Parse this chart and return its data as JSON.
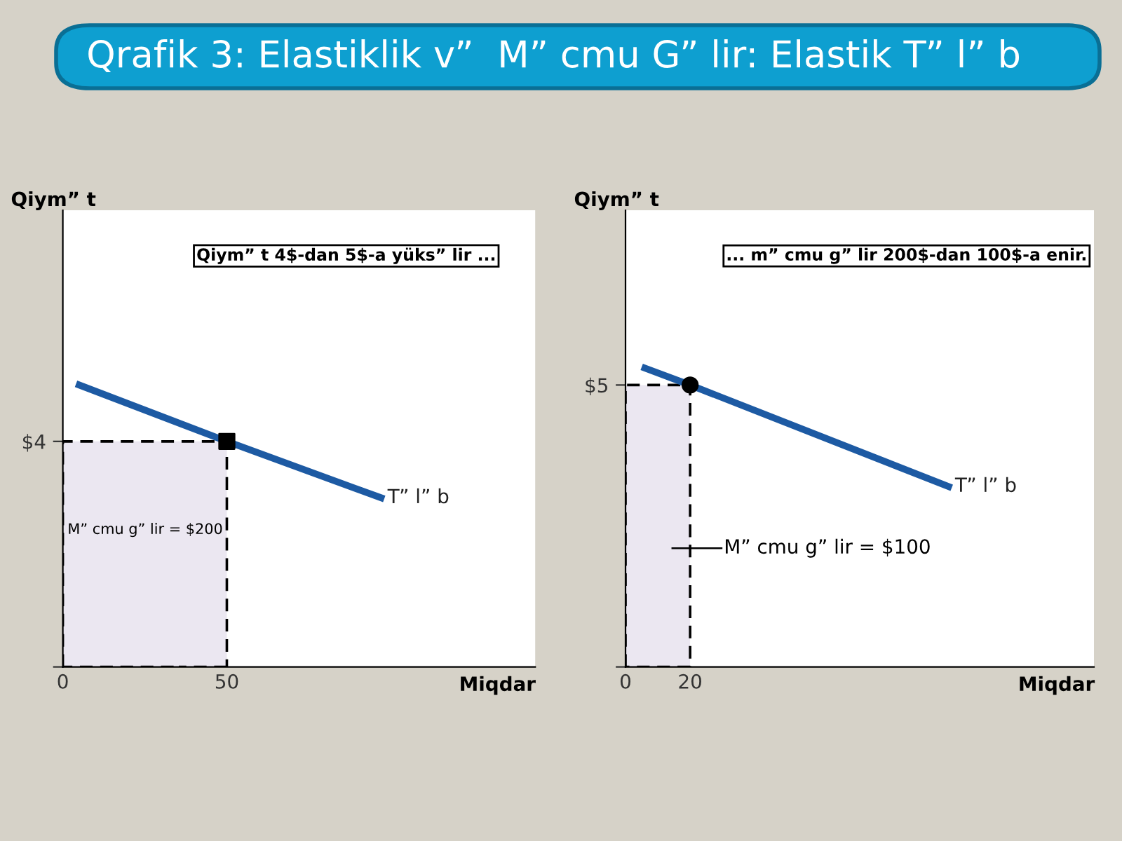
{
  "chart_data": [
    {
      "type": "line",
      "title": "Qrafik 3: Elastiklik v”  M” cmu G” lir: Elastik T” l” b",
      "xlabel": "Miqdar",
      "ylabel": "Qiym” t",
      "annotations": [
        "Qiym” t 4$-dan 5$-a yüks” lir ...",
        "M” cmu g” lir = $200"
      ],
      "xlim": [
        0,
        144
      ],
      "ylim": [
        0,
        8.1
      ],
      "xticks": [
        0,
        50
      ],
      "yticks": [
        {
          "value": 0,
          "label": null
        },
        {
          "value": 4,
          "label": "$4"
        }
      ],
      "grid": false,
      "series": [
        {
          "type": "area",
          "color": "#ebe7f1",
          "line_style": "dashed",
          "x": [
            0,
            50
          ],
          "values": [
            4,
            4
          ]
        },
        {
          "name": "T” l” b",
          "color": "#1d5aa3",
          "x": [
            5,
            50,
            97
          ],
          "values": [
            5,
            4,
            3
          ]
        },
        {
          "type": "scatter",
          "color": "#000000",
          "marker": "square",
          "x": [
            50
          ],
          "values": [
            4
          ]
        }
      ]
    },
    {
      "type": "line",
      "xlabel": "Miqdar",
      "ylabel": "Qiym” t",
      "annotations": [
        "... m” cmu g” lir 200$-dan 100$-a enir.",
        "M” cmu g” lir = $100"
      ],
      "xlim": [
        0,
        145
      ],
      "ylim": [
        0,
        8.1
      ],
      "xticks": [
        0,
        20
      ],
      "yticks": [
        {
          "value": 0,
          "label": null
        },
        {
          "value": 5,
          "label": "$5"
        }
      ],
      "grid": false,
      "series": [
        {
          "type": "area",
          "color": "#ebe7f1",
          "line_style": "dashed",
          "x": [
            0,
            20
          ],
          "values": [
            5,
            5
          ]
        },
        {
          "name": "T” l” b",
          "color": "#1d5aa3",
          "x": [
            6,
            20,
            100
          ],
          "values": [
            5.3,
            5,
            3.2
          ]
        },
        {
          "type": "scatter",
          "color": "#000000",
          "marker": "circle",
          "x": [
            20
          ],
          "values": [
            5
          ]
        }
      ]
    }
  ]
}
